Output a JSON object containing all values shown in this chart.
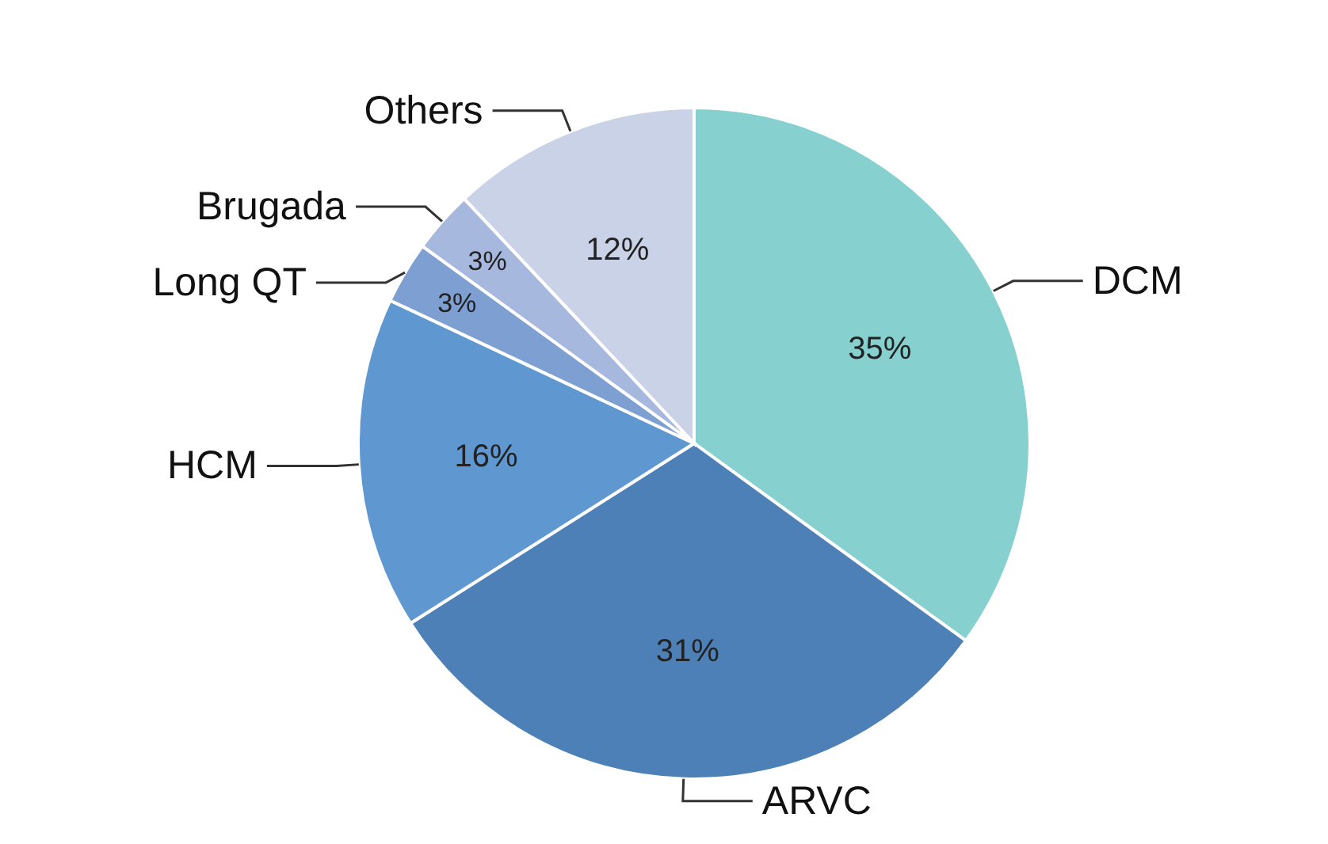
{
  "chart_data": {
    "type": "pie",
    "categories": [
      "DCM",
      "ARVC",
      "HCM",
      "Long QT",
      "Brugada",
      "Others"
    ],
    "values": [
      35,
      31,
      16,
      3,
      3,
      12
    ],
    "value_labels": [
      "35%",
      "31%",
      "16%",
      "3%",
      "3%",
      "12%"
    ],
    "colors": [
      "#86d0d0",
      "#4d80b6",
      "#5f98d0",
      "#7d9fd2",
      "#a7b8de",
      "#c9d2e6"
    ]
  }
}
